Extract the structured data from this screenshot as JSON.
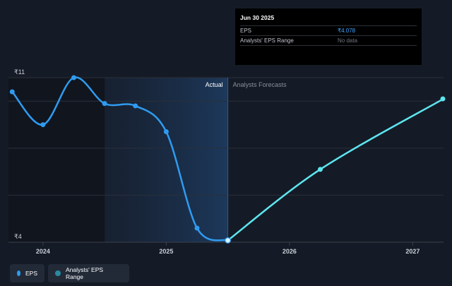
{
  "tooltip": {
    "date": "Jun 30 2025",
    "rows": [
      {
        "label": "EPS",
        "value": "₹4.078"
      },
      {
        "label": "Analysts' EPS Range",
        "value": "No data"
      }
    ]
  },
  "legend": [
    {
      "label": "EPS",
      "color": "#2f9bf0"
    },
    {
      "label": "Analysts' EPS Range",
      "color": "#2a8aa0"
    }
  ],
  "colors": {
    "actual": "#2f9bf0",
    "forecast": "#5de6f0",
    "background": "#151b26"
  },
  "chart_data": {
    "type": "line",
    "section_labels": {
      "actual": "Actual",
      "forecast": "Analysts Forecasts"
    },
    "y_tick_labels": [
      "₹11",
      "₹4"
    ],
    "ylim": [
      4,
      11
    ],
    "x_tick_labels": [
      "2024",
      "2025",
      "2026",
      "2027"
    ],
    "x_ticks": [
      2024.0,
      2025.0,
      2026.0,
      2027.0
    ],
    "xlim": [
      2023.72,
      2027.25
    ],
    "shaded_from": 2024.5,
    "split_at": 2025.5,
    "series": [
      {
        "name": "EPS",
        "segment": "actual",
        "points": [
          {
            "x": 2023.75,
            "y": 10.4
          },
          {
            "x": 2024.0,
            "y": 9.0
          },
          {
            "x": 2024.25,
            "y": 11.0
          },
          {
            "x": 2024.5,
            "y": 9.9
          },
          {
            "x": 2024.75,
            "y": 9.8
          },
          {
            "x": 2025.0,
            "y": 8.7
          },
          {
            "x": 2025.25,
            "y": 4.6
          },
          {
            "x": 2025.5,
            "y": 4.078
          }
        ]
      },
      {
        "name": "EPS",
        "segment": "forecast",
        "points": [
          {
            "x": 2025.5,
            "y": 4.078
          },
          {
            "x": 2026.25,
            "y": 7.1
          },
          {
            "x": 2027.25,
            "y": 10.1
          }
        ]
      }
    ],
    "highlight": {
      "x": 2025.5,
      "y": 4.078
    }
  }
}
